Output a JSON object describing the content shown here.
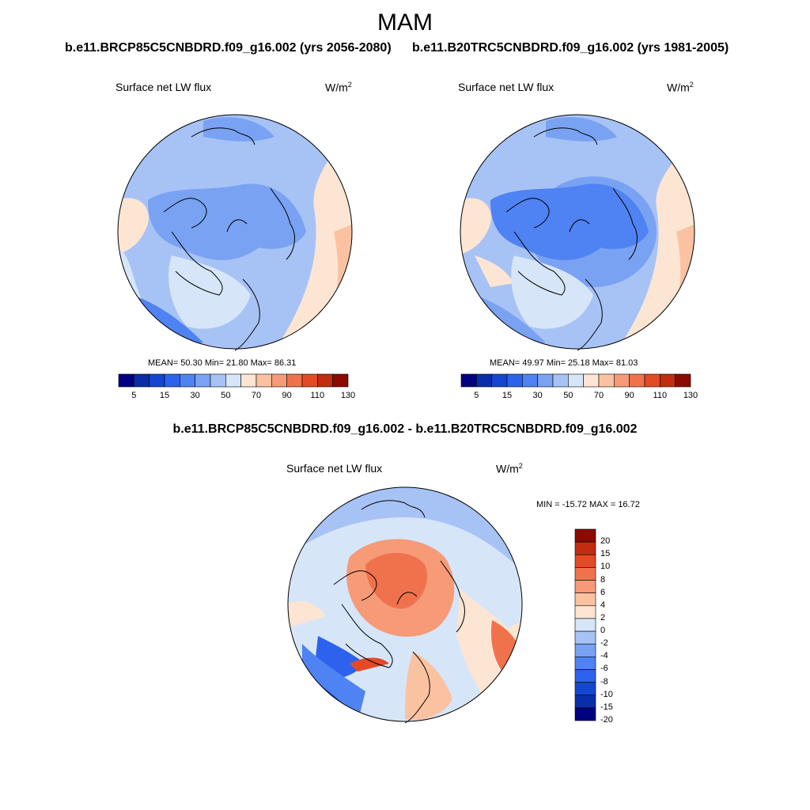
{
  "title": "MAM",
  "panels": [
    {
      "case": "b.e11.BRCP85C5CNBDRD.f09_g16.002 (yrs 2056-2080)",
      "variable": "Surface net LW flux",
      "unit": "W/m",
      "unit_exp": "2",
      "stats": "MEAN=  50.30  Min=  21.80  Max=  86.31"
    },
    {
      "case": "b.e11.B20TRC5CNBDRD.f09_g16.002 (yrs 1981-2005)",
      "variable": "Surface net LW flux",
      "unit": "W/m",
      "unit_exp": "2",
      "stats": "MEAN=  49.97  Min=  25.18  Max=  81.03"
    }
  ],
  "diff": {
    "title": "b.e11.BRCP85C5CNBDRD.f09_g16.002 - b.e11.B20TRC5CNBDRD.f09_g16.002",
    "variable": "Surface net LW flux",
    "unit": "W/m",
    "unit_exp": "2",
    "stats": "MIN = -15.72 MAX =  16.72"
  },
  "colorbar_abs": {
    "colors": [
      "#000080",
      "#0a2ea8",
      "#1446d2",
      "#2d62ee",
      "#4f82f2",
      "#79a2f3",
      "#a7c3f5",
      "#d6e6f8",
      "#fde5d3",
      "#fbc2a2",
      "#f69a78",
      "#f0724d",
      "#e44a25",
      "#c22c10",
      "#8b0a02"
    ],
    "labels": [
      "5",
      "15",
      "30",
      "50",
      "70",
      "90",
      "110",
      "130"
    ]
  },
  "colorbar_diff": {
    "colors": [
      "#000080",
      "#0a2ea8",
      "#1446d2",
      "#2d62ee",
      "#4f82f2",
      "#79a2f3",
      "#a7c3f5",
      "#d6e6f8",
      "#fde5d3",
      "#fbc2a2",
      "#f69a78",
      "#f0724d",
      "#e44a25",
      "#c22c10",
      "#8b0a02"
    ],
    "labels": [
      "20",
      "15",
      "10",
      "8",
      "6",
      "4",
      "2",
      "0",
      "-2",
      "-4",
      "-6",
      "-8",
      "-10",
      "-15",
      "-20"
    ]
  }
}
